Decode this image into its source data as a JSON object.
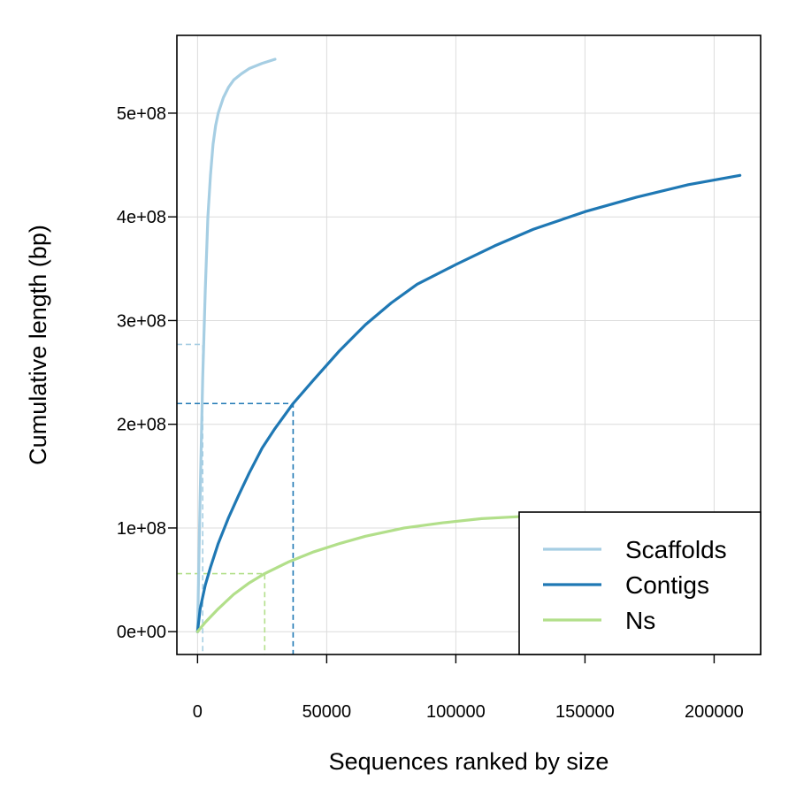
{
  "chart_data": {
    "type": "line",
    "xlabel": "Sequences ranked by size",
    "ylabel": "Cumulative length (bp)",
    "xlim": [
      -8000,
      218000
    ],
    "ylim": [
      -22000000,
      575000000
    ],
    "x_ticks": [
      0,
      50000,
      100000,
      150000,
      200000
    ],
    "x_tick_labels": [
      "0",
      "50000",
      "100000",
      "150000",
      "200000"
    ],
    "y_ticks": [
      0,
      100000000,
      200000000,
      300000000,
      400000000,
      500000000
    ],
    "y_tick_labels": [
      "0e+00",
      "1e+08",
      "2e+08",
      "3e+08",
      "4e+08",
      "5e+08"
    ],
    "grid": true,
    "legend_position": "bottom-right",
    "series": [
      {
        "name": "Scaffolds",
        "color": "#a6cee3",
        "points": [
          [
            0,
            0
          ],
          [
            1000,
            130000000
          ],
          [
            2000,
            245000000
          ],
          [
            3000,
            330000000
          ],
          [
            4000,
            400000000
          ],
          [
            5000,
            440000000
          ],
          [
            6000,
            470000000
          ],
          [
            7000,
            488000000
          ],
          [
            8000,
            500000000
          ],
          [
            10000,
            515000000
          ],
          [
            12000,
            525000000
          ],
          [
            14000,
            532000000
          ],
          [
            17000,
            538000000
          ],
          [
            20000,
            543000000
          ],
          [
            25000,
            548000000
          ],
          [
            30000,
            552000000
          ]
        ],
        "n50_x": 2000,
        "n50_y": 277000000
      },
      {
        "name": "Contigs",
        "color": "#1f78b4",
        "points": [
          [
            0,
            0
          ],
          [
            1000,
            22000000
          ],
          [
            3000,
            45000000
          ],
          [
            5000,
            62000000
          ],
          [
            8000,
            85000000
          ],
          [
            12000,
            110000000
          ],
          [
            16000,
            132000000
          ],
          [
            20000,
            153000000
          ],
          [
            25000,
            177000000
          ],
          [
            30000,
            196000000
          ],
          [
            37000,
            220000000
          ],
          [
            45000,
            243000000
          ],
          [
            55000,
            271000000
          ],
          [
            65000,
            296000000
          ],
          [
            75000,
            317000000
          ],
          [
            85000,
            335000000
          ],
          [
            100000,
            354000000
          ],
          [
            115000,
            372000000
          ],
          [
            130000,
            388000000
          ],
          [
            150000,
            405000000
          ],
          [
            170000,
            419000000
          ],
          [
            190000,
            431000000
          ],
          [
            210000,
            440000000
          ]
        ],
        "n50_x": 37000,
        "n50_y": 220000000
      },
      {
        "name": "Ns",
        "color": "#b2df8a",
        "points": [
          [
            0,
            0
          ],
          [
            3000,
            9000000
          ],
          [
            8000,
            22000000
          ],
          [
            14000,
            36000000
          ],
          [
            20000,
            47000000
          ],
          [
            26000,
            56000000
          ],
          [
            35000,
            67000000
          ],
          [
            45000,
            77000000
          ],
          [
            55000,
            85000000
          ],
          [
            65000,
            92000000
          ],
          [
            80000,
            100000000
          ],
          [
            95000,
            105000000
          ],
          [
            110000,
            109000000
          ],
          [
            125000,
            111000000
          ]
        ],
        "n50_x": 26000,
        "n50_y": 56000000
      }
    ]
  }
}
